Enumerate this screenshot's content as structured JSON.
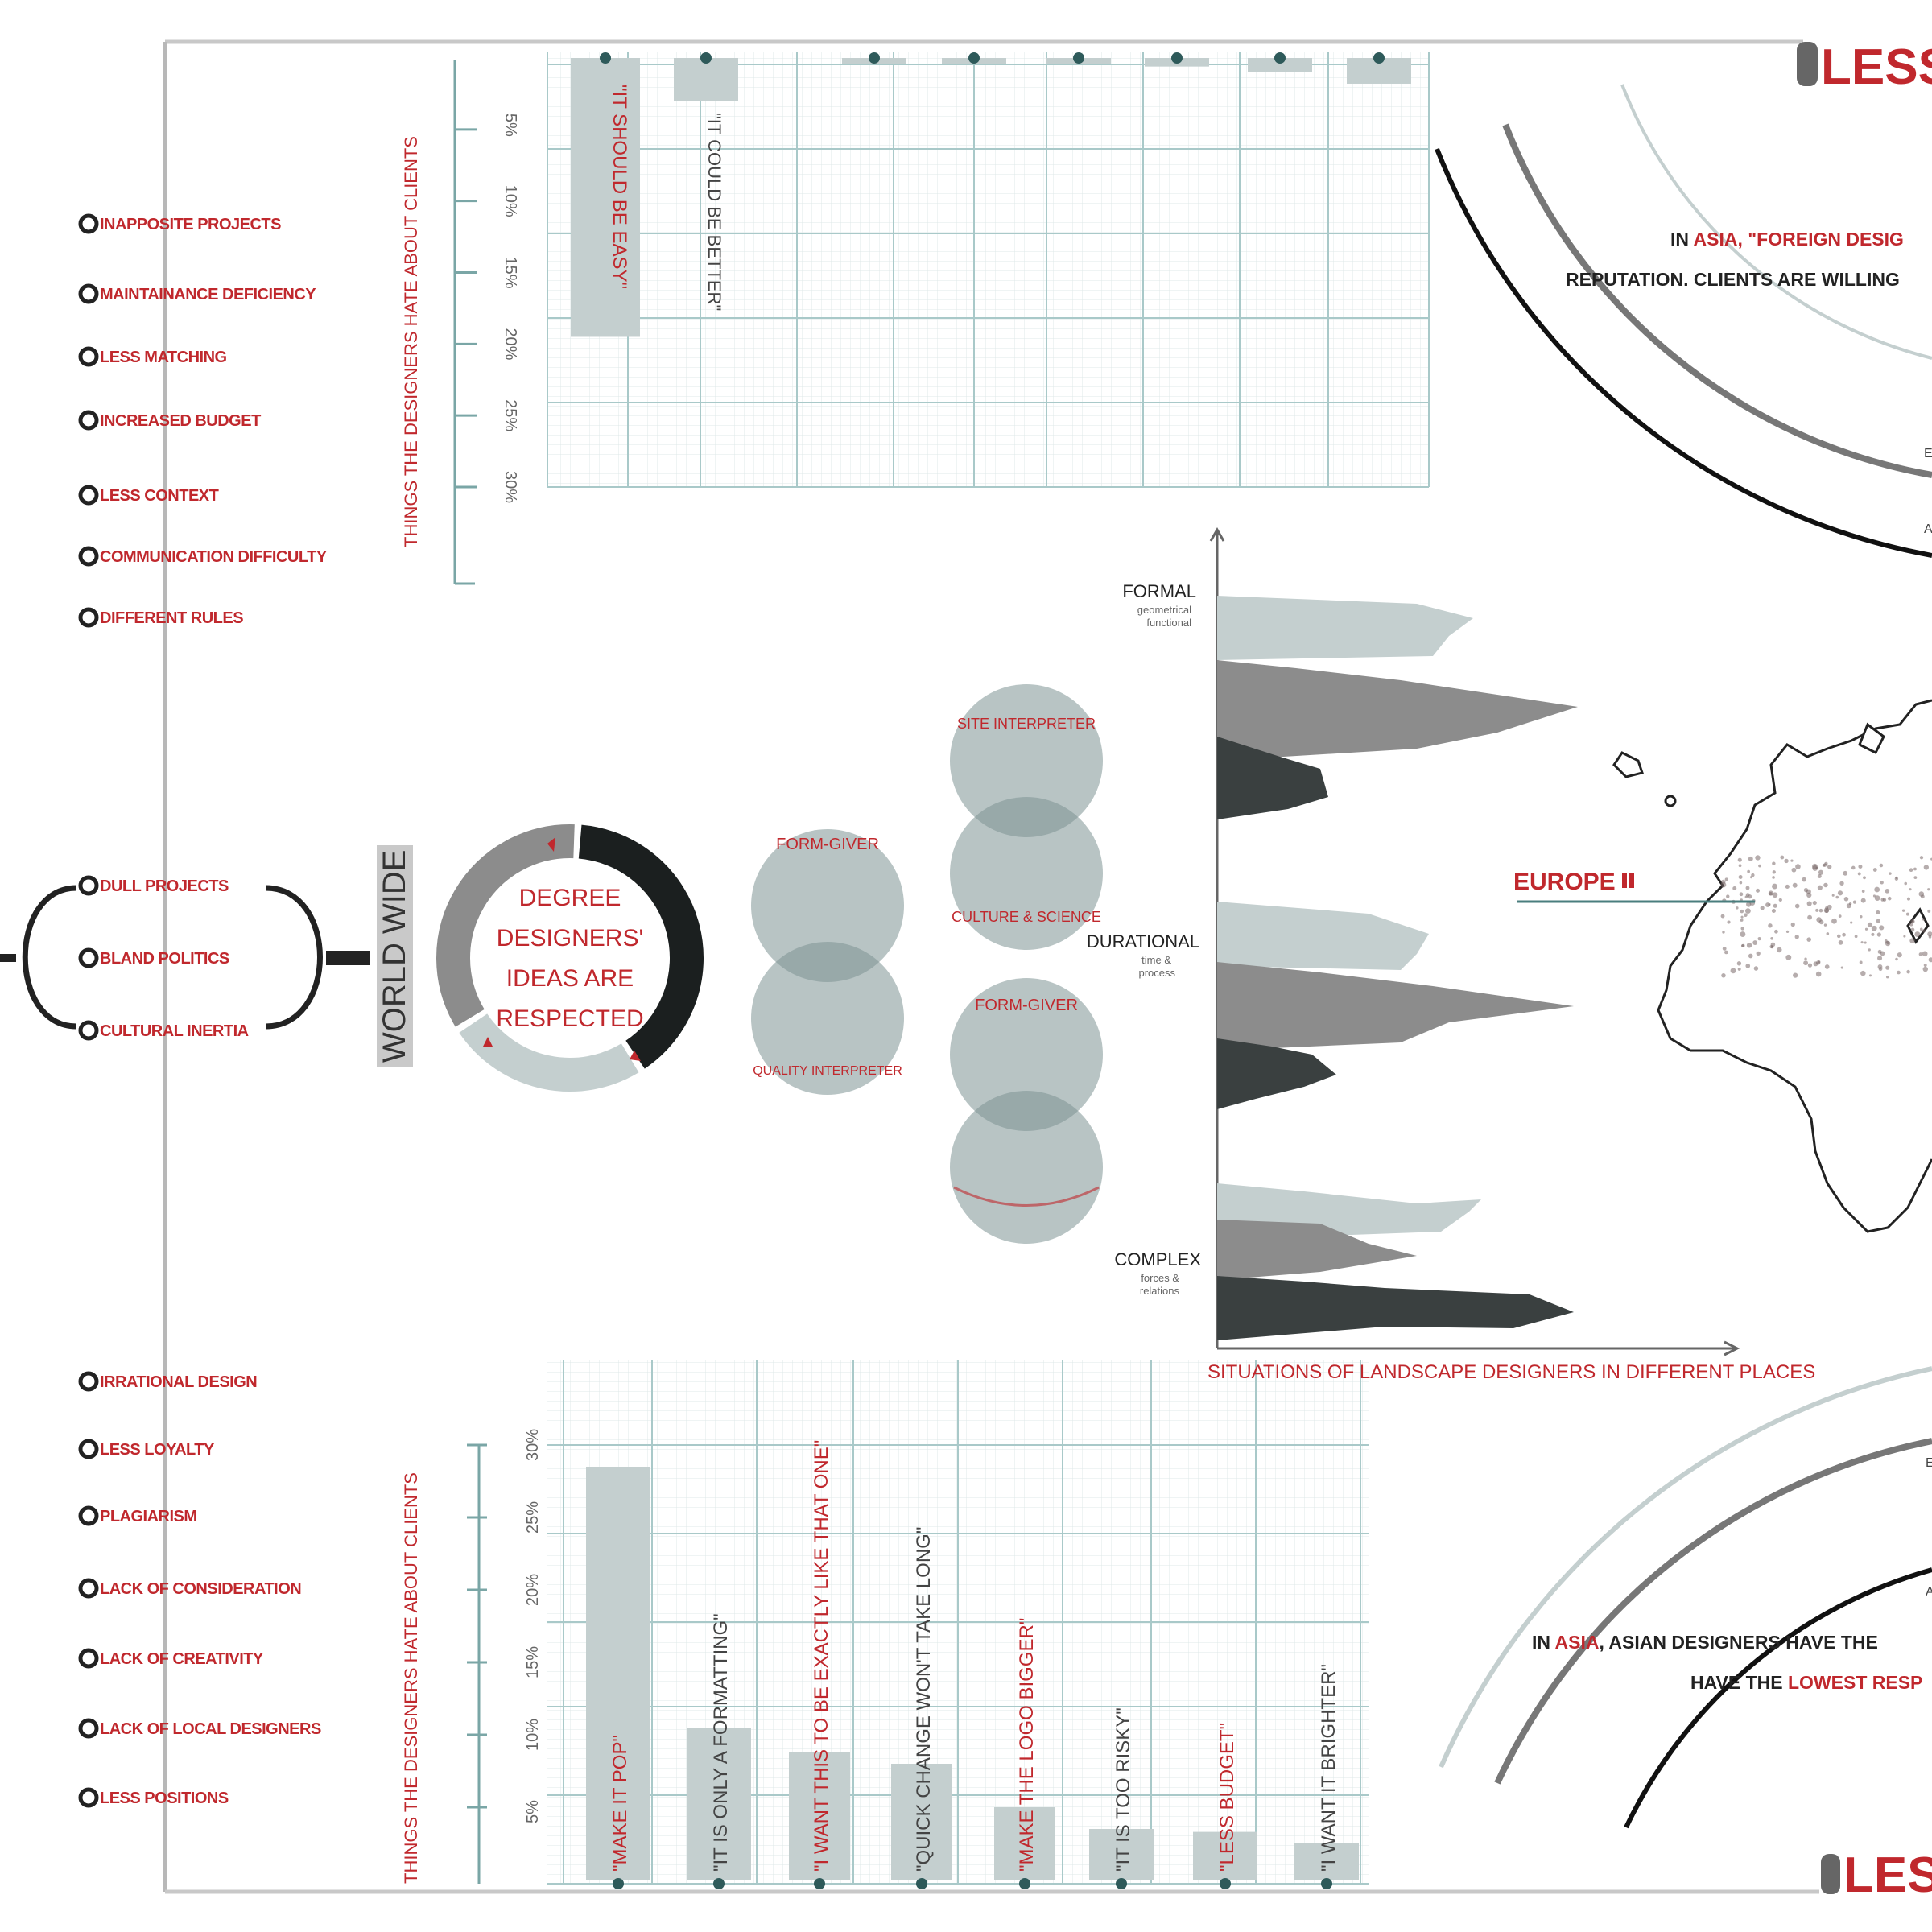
{
  "header": {
    "less_top": "LESS",
    "less_bottom": "LESS"
  },
  "left_list_top": {
    "items": [
      "INAPPOSITE PROJECTS",
      "MAINTAINANCE DEFICIENCY",
      "LESS MATCHING",
      "INCREASED BUDGET",
      "LESS CONTEXT",
      "COMMUNICATION DIFFICULTY",
      "DIFFERENT RULES"
    ]
  },
  "left_list_mid": {
    "items": [
      "DULL PROJECTS",
      "BLAND POLITICS",
      "CULTURAL INERTIA"
    ]
  },
  "left_list_bottom": {
    "items": [
      "IRRATIONAL DESIGN",
      "LESS LOYALTY",
      "PLAGIARISM",
      "LACK OF CONSIDERATION",
      "LACK OF CREATIVITY",
      "LACK OF LOCAL DESIGNERS",
      "LESS POSITIONS"
    ]
  },
  "world_wide": "WORLD WIDE",
  "donut": {
    "lines": [
      "DEGREE",
      "DESIGNERS'",
      "IDEAS ARE",
      "RESPECTED"
    ],
    "segments": [
      {
        "color": "#1b1f1f",
        "value": 40
      },
      {
        "color": "#c4cfcf",
        "value": 25
      },
      {
        "color": "#8c8c8c",
        "value": 35
      }
    ]
  },
  "venn_labels": {
    "a_top": "FORM-GIVER",
    "a_bottom": "QUALITY INTERPRETER",
    "b_top": "SITE INTERPRETER",
    "b_bottom": "CULTURE & SCIENCE",
    "c_top": "FORM-GIVER",
    "c_bottom": ""
  },
  "asia_top": {
    "line1_prefix": "IN ",
    "line1_highlight": "ASIA",
    "line1_rest": ", \"FOREIGN DESIG",
    "line2": "REPUTATION. CLIENTS ARE WILLING"
  },
  "asia_bottom": {
    "line1_prefix": "IN ",
    "line1_highlight": "ASIA",
    "line1_rest": ", ASIAN DESIGNERS HAVE THE ",
    "line2_prefix": "HAVE THE ",
    "line2_highlight": "LOWEST RESP"
  },
  "map": {
    "label": "EUROPE"
  },
  "chart_data": [
    {
      "type": "bar",
      "orientation": "downward",
      "ylabel": "THINGS THE DESIGNERS HATE ABOUT CLIENTS",
      "tick_labels": [
        "5%",
        "10%",
        "15%",
        "20%",
        "25%",
        "30%"
      ],
      "ylim": [
        0,
        30
      ],
      "categories": [
        "\"IT SHOULD BE EASY\"",
        "\"IT COULD BE BETTER\"",
        "",
        "",
        "",
        "",
        "",
        ""
      ],
      "values": [
        19.5,
        3.0,
        0.4,
        0.4,
        0.4,
        0.6,
        1.0,
        1.8
      ]
    },
    {
      "type": "area",
      "xlabel": "SITUATIONS OF LANDSCAPE DESIGNERS IN DIFFERENT PLACES",
      "groups": [
        {
          "name": "FORMAL",
          "sub": [
            "geometrical",
            "functional"
          ]
        },
        {
          "name": "DURATIONAL",
          "sub": [
            "time &",
            "process"
          ]
        },
        {
          "name": "COMPLEX",
          "sub": [
            "forces &",
            "relations"
          ]
        }
      ],
      "series_colors": [
        "#c4cfcf",
        "#8c8c8c",
        "#3a4040"
      ]
    },
    {
      "type": "bar",
      "ylabel": "THINGS THE DESIGNERS HATE ABOUT CLIENTS",
      "tick_labels": [
        "5%",
        "10%",
        "15%",
        "20%",
        "25%",
        "30%"
      ],
      "ylim": [
        0,
        30
      ],
      "categories": [
        "\"MAKE IT POP\"",
        "\"IT IS ONLY A FORMATTING\"",
        "\"I WANT THIS TO BE EXACTLY LIKE THAT ONE\"",
        "\"QUICK CHANGE WON'T TAKE LONG\"",
        "\"MAKE THE LOGO BIGGER\"",
        "\"IT IS TOO RISKY\"",
        "\"LESS BUDGET\"",
        "\"I WANT IT BRIGHTER\""
      ],
      "label_colors": [
        "#c0282d",
        "#444",
        "#c0282d",
        "#444",
        "#c0282d",
        "#444",
        "#c0282d",
        "#444"
      ],
      "values": [
        28.5,
        10.5,
        8.8,
        8.0,
        5.0,
        3.5,
        3.3,
        2.5
      ]
    }
  ]
}
